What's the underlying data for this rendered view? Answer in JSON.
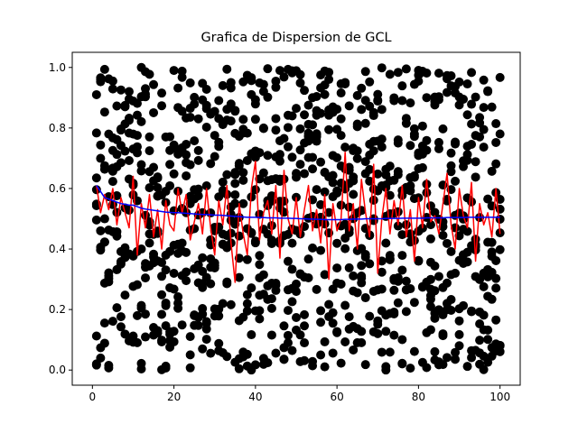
{
  "chart_data": {
    "type": "scatter",
    "title": "Grafica de Dispersion de GCL",
    "xlabel": "",
    "ylabel": "",
    "xlim": [
      -4.95,
      104.95
    ],
    "ylim": [
      -0.05,
      1.05
    ],
    "xticks": [
      0,
      20,
      40,
      60,
      80,
      100
    ],
    "xtick_labels": [
      "0",
      "20",
      "40",
      "60",
      "80",
      "100"
    ],
    "yticks": [
      0.0,
      0.2,
      0.4,
      0.6,
      0.8,
      1.0
    ],
    "ytick_labels": [
      "0.0",
      "0.2",
      "0.4",
      "0.6",
      "0.8",
      "1.0"
    ],
    "grid": false,
    "legend": "none",
    "colors": {
      "points": "#000000",
      "batch_mean_line": "#ff0000",
      "cumulative_mean_line": "#0000ff"
    },
    "generator": {
      "points_per_x": 10,
      "x_start": 1,
      "x_end": 100,
      "seed": 12345
    },
    "series": [
      {
        "type": "scatter",
        "points_per_x": 10,
        "value_range": [
          0,
          1
        ],
        "x": [
          1,
          100
        ]
      },
      {
        "type": "line",
        "x": [
          1,
          2,
          3,
          4,
          5,
          6,
          7,
          8,
          9,
          10,
          11,
          12,
          13,
          14,
          15,
          16,
          17,
          18,
          19,
          20,
          21,
          22,
          23,
          24,
          25,
          26,
          27,
          28,
          29,
          30,
          31,
          32,
          33,
          34,
          35,
          36,
          37,
          38,
          39,
          40,
          41,
          42,
          43,
          44,
          45,
          46,
          47,
          48,
          49,
          50,
          51,
          52,
          53,
          54,
          55,
          56,
          57,
          58,
          59,
          60,
          61,
          62,
          63,
          64,
          65,
          66,
          67,
          68,
          69,
          70,
          71,
          72,
          73,
          74,
          75,
          76,
          77,
          78,
          79,
          80,
          81,
          82,
          83,
          84,
          85,
          86,
          87,
          88,
          89,
          90,
          91,
          92,
          93,
          94,
          95,
          96,
          97,
          98,
          99,
          100
        ],
        "values": [
          0.61,
          0.52,
          0.58,
          0.53,
          0.6,
          0.48,
          0.57,
          0.52,
          0.47,
          0.64,
          0.38,
          0.55,
          0.47,
          0.58,
          0.44,
          0.53,
          0.4,
          0.56,
          0.48,
          0.46,
          0.6,
          0.52,
          0.58,
          0.43,
          0.49,
          0.55,
          0.45,
          0.6,
          0.47,
          0.38,
          0.56,
          0.48,
          0.61,
          0.42,
          0.29,
          0.55,
          0.45,
          0.38,
          0.6,
          0.69,
          0.43,
          0.52,
          0.56,
          0.45,
          0.61,
          0.37,
          0.66,
          0.5,
          0.45,
          0.57,
          0.44,
          0.53,
          0.61,
          0.46,
          0.53,
          0.42,
          0.58,
          0.3,
          0.55,
          0.46,
          0.5,
          0.72,
          0.46,
          0.55,
          0.4,
          0.63,
          0.52,
          0.44,
          0.68,
          0.32,
          0.5,
          0.6,
          0.45,
          0.56,
          0.48,
          0.61,
          0.44,
          0.53,
          0.36,
          0.57,
          0.47,
          0.63,
          0.49,
          0.51,
          0.45,
          0.55,
          0.65,
          0.48,
          0.4,
          0.6,
          0.51,
          0.47,
          0.62,
          0.36,
          0.55,
          0.48,
          0.52,
          0.44,
          0.6,
          0.45
        ]
      },
      {
        "type": "line",
        "x": [
          1,
          2,
          3,
          4,
          5,
          6,
          7,
          8,
          9,
          10,
          11,
          12,
          13,
          14,
          15,
          16,
          17,
          18,
          19,
          20,
          21,
          22,
          23,
          24,
          25,
          26,
          27,
          28,
          29,
          30,
          31,
          32,
          33,
          34,
          35,
          36,
          37,
          38,
          39,
          40,
          41,
          42,
          43,
          44,
          45,
          46,
          47,
          48,
          49,
          50,
          51,
          52,
          53,
          54,
          55,
          56,
          57,
          58,
          59,
          60,
          61,
          62,
          63,
          64,
          65,
          66,
          67,
          68,
          69,
          70,
          71,
          72,
          73,
          74,
          75,
          76,
          77,
          78,
          79,
          80,
          81,
          82,
          83,
          84,
          85,
          86,
          87,
          88,
          89,
          90,
          91,
          92,
          93,
          94,
          95,
          96,
          97,
          98,
          99,
          100
        ],
        "values": [
          0.61,
          0.59,
          0.57,
          0.565,
          0.56,
          0.555,
          0.55,
          0.548,
          0.545,
          0.545,
          0.54,
          0.535,
          0.532,
          0.53,
          0.528,
          0.526,
          0.524,
          0.522,
          0.521,
          0.52,
          0.52,
          0.519,
          0.518,
          0.517,
          0.516,
          0.515,
          0.514,
          0.514,
          0.513,
          0.512,
          0.512,
          0.511,
          0.51,
          0.509,
          0.508,
          0.507,
          0.506,
          0.505,
          0.505,
          0.505,
          0.504,
          0.504,
          0.503,
          0.503,
          0.503,
          0.502,
          0.502,
          0.502,
          0.501,
          0.501,
          0.5,
          0.5,
          0.499,
          0.499,
          0.498,
          0.498,
          0.497,
          0.497,
          0.497,
          0.497,
          0.497,
          0.498,
          0.498,
          0.499,
          0.499,
          0.499,
          0.5,
          0.5,
          0.5,
          0.5,
          0.5,
          0.501,
          0.501,
          0.501,
          0.501,
          0.502,
          0.502,
          0.502,
          0.502,
          0.502,
          0.502,
          0.503,
          0.503,
          0.503,
          0.503,
          0.503,
          0.504,
          0.504,
          0.504,
          0.504,
          0.504,
          0.505,
          0.505,
          0.505,
          0.505,
          0.505,
          0.505,
          0.505,
          0.505,
          0.505
        ]
      }
    ]
  }
}
